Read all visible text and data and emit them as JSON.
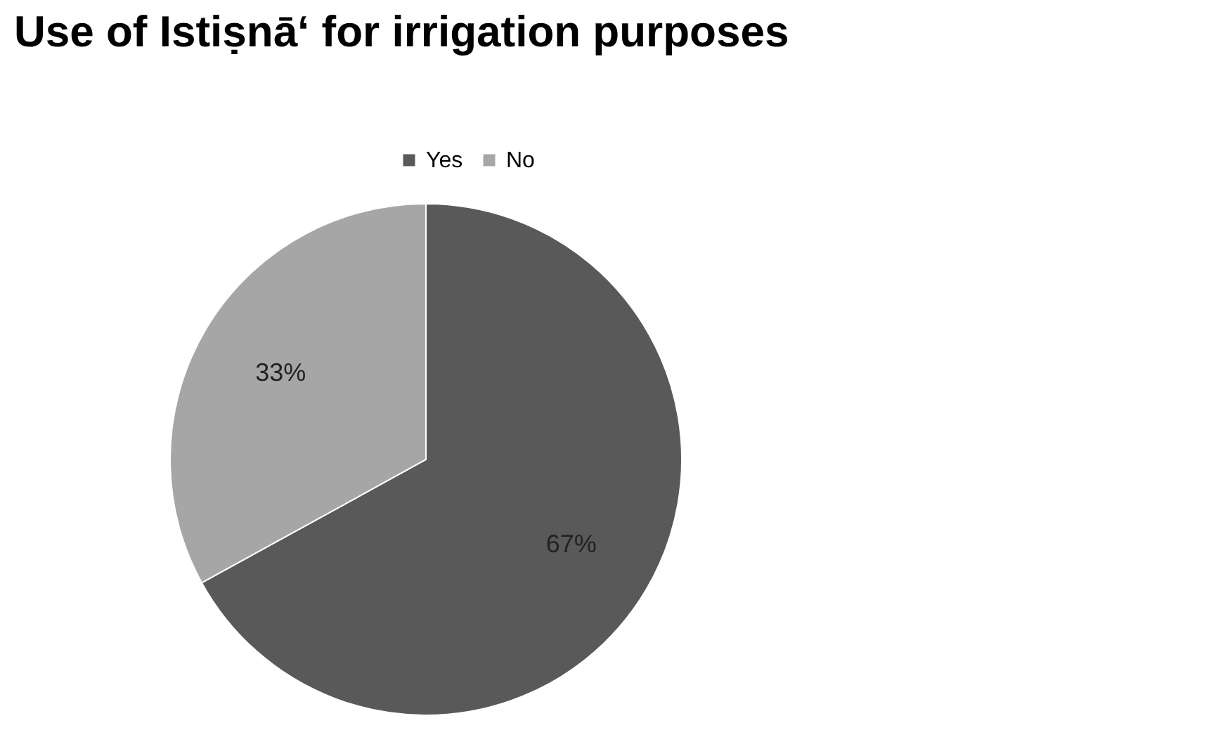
{
  "chart_data": {
    "type": "pie",
    "title": "Use of Istiṣnā‘ for irrigation purposes",
    "categories": [
      "Yes",
      "No"
    ],
    "values": [
      67,
      33
    ],
    "colors": [
      "#595959",
      "#a6a6a6"
    ],
    "value_labels": [
      "67%",
      "33%"
    ],
    "legend": "top"
  }
}
